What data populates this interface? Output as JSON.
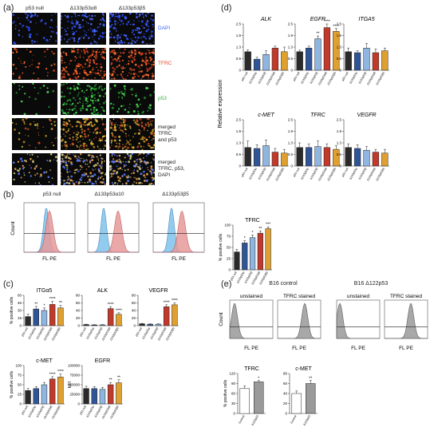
{
  "panels": {
    "a": {
      "label": "(a)",
      "columns": [
        "p53 null",
        "Δ133p53α8",
        "Δ133p53β5"
      ],
      "rows": [
        {
          "lines": [
            "DAPI"
          ],
          "color": "#3a66ff"
        },
        {
          "lines": [
            "TFRC"
          ],
          "color": "#e04a2a"
        },
        {
          "lines": [
            "p53"
          ],
          "color": "#35b040"
        },
        {
          "lines": [
            "merged",
            "TFRC",
            "and p53"
          ],
          "color": "#222222"
        },
        {
          "lines": [
            "merged",
            "TFRC, p53,",
            "DAPI"
          ],
          "color": "#222222"
        }
      ]
    },
    "b": {
      "label": "(b)",
      "columns": [
        "p53 null",
        "Δ133p53α10",
        "Δ133p53β5"
      ],
      "ylabel": "Count",
      "xlabel": "FL PE",
      "bar_title": "TFRC",
      "bar_ylabel": "% positive cells",
      "bar_categories": [
        "p53 null",
        "Δ133p53α",
        "Δ133p53β",
        "Δ133p53α8",
        "Δ133p53β5"
      ]
    },
    "c": {
      "label": "(c)",
      "ylabel": "% positive cells",
      "ylabel_mfi": "MFI",
      "categories": [
        "p53 null",
        "Δ133p53α",
        "Δ133p53β",
        "Δ133p53α8",
        "Δ133p53β5"
      ]
    },
    "d": {
      "label": "(d)",
      "ylabel": "Relative expression",
      "categories": [
        "p53 null",
        "Δ133p53α",
        "Δ133p53β",
        "Δ133p53α8",
        "Δ133p53β5"
      ]
    },
    "e": {
      "label": "(e)",
      "group_left": "B16 control",
      "group_right": "B16 Δ122p53",
      "unstained": "unstained",
      "stained": "TFRC stained",
      "ylabel": "Count",
      "xlabel": "FL PE",
      "bar_ylabel": "% positive cells",
      "categories": [
        "Control",
        "Δ122p53"
      ]
    }
  },
  "colors": {
    "null": "#2a2a2a",
    "a": "#2f5597",
    "b": "#8fb6e0",
    "a8": "#c0392b",
    "b5": "#e0a030"
  },
  "chart_data": [
    {
      "type": "bar",
      "title": "ALK",
      "panel": "d",
      "categories": [
        "p53 null",
        "Δ133p53α",
        "Δ133p53β",
        "Δ133p53α8",
        "Δ133p53β5"
      ],
      "values": [
        1.0,
        0.6,
        0.85,
        1.2,
        1.0
      ],
      "errors": [
        0.1,
        0.1,
        0.2,
        0.1,
        0.25
      ],
      "stars": [
        "",
        "",
        "",
        "",
        ""
      ],
      "ylim": [
        0,
        2.5
      ]
    },
    {
      "type": "bar",
      "title": "EGFR",
      "panel": "d",
      "categories": [
        "p53 null",
        "Δ133p53α",
        "Δ133p53β",
        "Δ133p53α8",
        "Δ133p53β5"
      ],
      "values": [
        1.0,
        1.2,
        1.7,
        2.3,
        2.1
      ],
      "errors": [
        0.08,
        0.1,
        0.15,
        0.2,
        0.15
      ],
      "stars": [
        "",
        "",
        "**",
        "****",
        "****"
      ],
      "ylim": [
        0,
        2.5
      ]
    },
    {
      "type": "bar",
      "title": "ITGA5",
      "panel": "d",
      "categories": [
        "p53 null",
        "Δ133p53α",
        "Δ133p53β",
        "Δ133p53α8",
        "Δ133p53β5"
      ],
      "values": [
        1.0,
        0.95,
        1.2,
        0.95,
        1.05
      ],
      "errors": [
        0.2,
        0.1,
        0.25,
        0.2,
        0.15
      ],
      "stars": [
        "",
        "",
        "",
        "",
        ""
      ],
      "ylim": [
        0,
        2.5
      ]
    },
    {
      "type": "bar",
      "title": "c-MET",
      "panel": "d",
      "categories": [
        "p53 null",
        "Δ133p53α",
        "Δ133p53β",
        "Δ133p53α8",
        "Δ133p53β5"
      ],
      "values": [
        1.0,
        0.95,
        1.1,
        0.75,
        0.7
      ],
      "errors": [
        0.35,
        0.2,
        0.3,
        0.2,
        0.2
      ],
      "stars": [
        "",
        "",
        "",
        "",
        ""
      ],
      "ylim": [
        0,
        2.5
      ]
    },
    {
      "type": "bar",
      "title": "TFRC",
      "panel": "d",
      "categories": [
        "p53 null",
        "Δ133p53α",
        "Δ133p53β",
        "Δ133p53α8",
        "Δ133p53β5"
      ],
      "values": [
        1.0,
        1.0,
        1.05,
        1.0,
        0.9
      ],
      "errors": [
        0.25,
        0.2,
        0.3,
        0.2,
        0.2
      ],
      "stars": [
        "",
        "",
        "",
        "",
        ""
      ],
      "ylim": [
        0,
        2.5
      ]
    },
    {
      "type": "bar",
      "title": "VEGFR",
      "panel": "d",
      "categories": [
        "p53 null",
        "Δ133p53α",
        "Δ133p53β",
        "Δ133p53α8",
        "Δ133p53β5"
      ],
      "values": [
        1.0,
        0.95,
        0.85,
        0.75,
        0.7
      ],
      "errors": [
        0.2,
        0.2,
        0.2,
        0.15,
        0.2
      ],
      "stars": [
        "",
        "",
        "",
        "",
        ""
      ],
      "ylim": [
        0,
        2.5
      ]
    },
    {
      "type": "bar",
      "title": "TFRC",
      "panel": "b",
      "categories": [
        "p53 null",
        "Δ133p53α",
        "Δ133p53β",
        "Δ133p53α8",
        "Δ133p53β5"
      ],
      "values": [
        40,
        60,
        72,
        82,
        92
      ],
      "errors": [
        6,
        5,
        6,
        5,
        4
      ],
      "stars": [
        "",
        "*",
        "*",
        "**",
        "***"
      ],
      "ylim": [
        0,
        100
      ]
    },
    {
      "type": "bar",
      "title": "ITGα5",
      "panel": "c",
      "categories": [
        "p53 null",
        "Δ133p53α",
        "Δ133p53β",
        "Δ133p53α8",
        "Δ133p53β5"
      ],
      "values": [
        18,
        33,
        30,
        42,
        35
      ],
      "errors": [
        5,
        5,
        5,
        6,
        5
      ],
      "stars": [
        "",
        "**",
        "*",
        "****",
        "**"
      ],
      "ylim": [
        0,
        60
      ]
    },
    {
      "type": "bar",
      "title": "ALK",
      "panel": "c",
      "categories": [
        "p53 null",
        "Δ133p53α",
        "Δ133p53β",
        "Δ133p53α8",
        "Δ133p53β5"
      ],
      "values": [
        3,
        2,
        2,
        45,
        30
      ],
      "errors": [
        1,
        1,
        1,
        5,
        4
      ],
      "stars": [
        "",
        "",
        "",
        "****",
        "****"
      ],
      "ylim": [
        0,
        80
      ]
    },
    {
      "type": "bar",
      "title": "VEGFR",
      "panel": "c",
      "categories": [
        "p53 null",
        "Δ133p53α",
        "Δ133p53β",
        "Δ133p53α8",
        "Δ133p53β5"
      ],
      "values": [
        5,
        4,
        4,
        50,
        55
      ],
      "errors": [
        1,
        1,
        1,
        5,
        5
      ],
      "stars": [
        "",
        "",
        "",
        "****",
        "****"
      ],
      "ylim": [
        0,
        80
      ]
    },
    {
      "type": "bar",
      "title": "c-MET",
      "panel": "c",
      "categories": [
        "p53 null",
        "Δ133p53α",
        "Δ133p53β",
        "Δ133p53α8",
        "Δ133p53β5"
      ],
      "values": [
        35,
        40,
        50,
        65,
        70
      ],
      "errors": [
        5,
        5,
        6,
        6,
        8
      ],
      "stars": [
        "",
        "",
        "",
        "****",
        "****"
      ],
      "ylim": [
        0,
        100
      ]
    },
    {
      "type": "bar",
      "title": "EGFR",
      "panel": "c",
      "categories": [
        "p53 null",
        "Δ133p53α",
        "Δ133p53β",
        "Δ133p53α8",
        "Δ133p53β5"
      ],
      "values": [
        40000,
        40000,
        38000,
        50000,
        55000
      ],
      "errors": [
        6000,
        5000,
        5000,
        6000,
        8000
      ],
      "stars": [
        "",
        "",
        "",
        "**",
        "**"
      ],
      "ylim": [
        0,
        100000
      ]
    },
    {
      "type": "bar",
      "title": "TFRC",
      "panel": "e",
      "categories": [
        "Control",
        "Δ122p53"
      ],
      "values": [
        75,
        95
      ],
      "errors": [
        8,
        4
      ],
      "stars": [
        "",
        "*"
      ],
      "ylim": [
        0,
        120
      ]
    },
    {
      "type": "bar",
      "title": "c-MET",
      "panel": "e",
      "categories": [
        "Control",
        "Δ122p53"
      ],
      "values": [
        40,
        60
      ],
      "errors": [
        5,
        6
      ],
      "stars": [
        "",
        "**"
      ],
      "ylim": [
        0,
        80
      ]
    }
  ]
}
